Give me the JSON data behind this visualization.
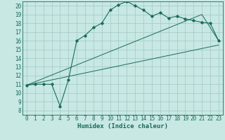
{
  "title": "",
  "xlabel": "Humidex (Indice chaleur)",
  "xlim": [
    -0.5,
    23.5
  ],
  "ylim": [
    7.5,
    20.5
  ],
  "xticks": [
    0,
    1,
    2,
    3,
    4,
    5,
    6,
    7,
    8,
    9,
    10,
    11,
    12,
    13,
    14,
    15,
    16,
    17,
    18,
    19,
    20,
    21,
    22,
    23
  ],
  "yticks": [
    8,
    9,
    10,
    11,
    12,
    13,
    14,
    15,
    16,
    17,
    18,
    19,
    20
  ],
  "bg_color": "#c8e8e4",
  "grid_color": "#a0c8c4",
  "line_color": "#1a6b5a",
  "main_line_x": [
    0,
    1,
    2,
    3,
    4,
    5,
    6,
    7,
    8,
    9,
    10,
    11,
    12,
    13,
    14,
    15,
    16,
    17,
    18,
    19,
    20,
    21,
    22,
    23
  ],
  "main_line_y": [
    10.9,
    11.0,
    11.0,
    11.0,
    8.5,
    11.5,
    16.0,
    16.6,
    17.5,
    18.0,
    19.5,
    20.1,
    20.5,
    20.0,
    19.5,
    18.8,
    19.2,
    18.6,
    18.8,
    18.5,
    18.3,
    18.1,
    18.0,
    16.0
  ],
  "line1_x": [
    0,
    23
  ],
  "line1_y": [
    10.9,
    15.5
  ],
  "line2_x": [
    0,
    21,
    23
  ],
  "line2_y": [
    10.9,
    19.0,
    16.0
  ],
  "tick_fontsize": 5.5,
  "xlabel_fontsize": 6.5
}
